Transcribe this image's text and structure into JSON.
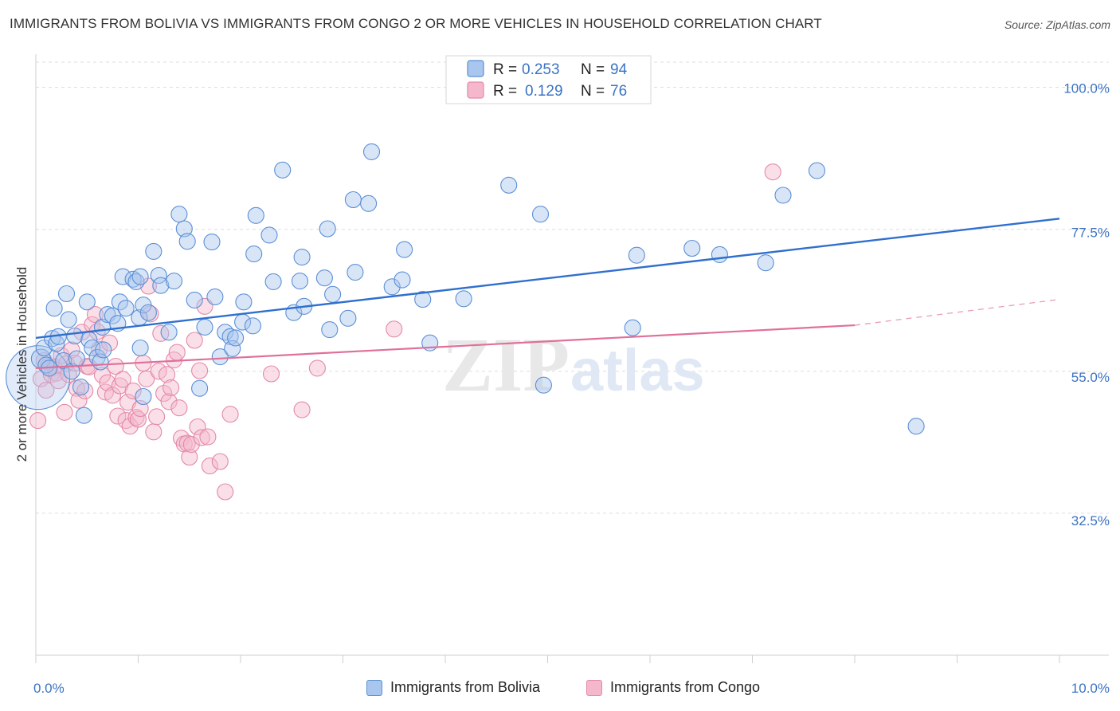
{
  "header": {
    "title": "IMMIGRANTS FROM BOLIVIA VS IMMIGRANTS FROM CONGO 2 OR MORE VEHICLES IN HOUSEHOLD CORRELATION CHART",
    "source": "Source: ZipAtlas.com"
  },
  "watermark": {
    "zip": "ZIP",
    "atlas": "atlas"
  },
  "colors": {
    "blue_fill": "#a9c6ee",
    "blue_stroke": "#5b8fd6",
    "blue_line": "#2f6fce",
    "pink_fill": "#f5b7cb",
    "pink_stroke": "#e38aa8",
    "pink_line": "#e0709a",
    "grid": "#dddddd",
    "axis_label": "#3b73c4"
  },
  "chart_data": {
    "type": "scatter",
    "title": "IMMIGRANTS FROM BOLIVIA VS IMMIGRANTS FROM CONGO 2 OR MORE VEHICLES IN HOUSEHOLD CORRELATION CHART",
    "xlabel": "",
    "ylabel": "2 or more Vehicles in Household",
    "xlim": [
      0,
      10
    ],
    "ylim": [
      10,
      104
    ],
    "x_tick_labels": [
      {
        "x": 0,
        "label": "0.0%"
      },
      {
        "x": 10,
        "label": "10.0%"
      }
    ],
    "y_tick_labels": [
      {
        "y": 100,
        "label": "100.0%"
      },
      {
        "y": 77.5,
        "label": "77.5%"
      },
      {
        "y": 55,
        "label": "55.0%"
      },
      {
        "y": 32.5,
        "label": "32.5%"
      }
    ],
    "legend": {
      "position": "top-center",
      "entries": [
        {
          "r_label": "R =",
          "r_value": "0.253",
          "n_label": "N =",
          "n_value": "94"
        },
        {
          "r_label": "R =",
          "r_value": "0.129",
          "n_label": "N =",
          "n_value": "76"
        }
      ]
    },
    "series": [
      {
        "name": "Immigrants from Bolivia",
        "trend": {
          "x0": 0,
          "y0": 60.3,
          "x1": 10,
          "y1": 79.2
        },
        "points": [
          [
            0.02,
            54,
            40
          ],
          [
            0.05,
            57,
            12
          ],
          [
            0.08,
            58.7,
            10
          ],
          [
            0.1,
            56,
            10
          ],
          [
            0.13,
            55.5,
            10
          ],
          [
            0.16,
            60.2,
            10
          ],
          [
            0.2,
            59.4,
            10
          ],
          [
            0.18,
            65,
            10
          ],
          [
            0.22,
            60.5,
            10
          ],
          [
            0.27,
            56.7,
            10
          ],
          [
            0.3,
            67.3,
            10
          ],
          [
            0.32,
            63.2,
            10
          ],
          [
            0.35,
            55,
            10
          ],
          [
            0.38,
            60.6,
            10
          ],
          [
            0.4,
            57,
            10
          ],
          [
            0.44,
            52.5,
            10
          ],
          [
            0.47,
            48,
            10
          ],
          [
            0.5,
            66,
            10
          ],
          [
            0.52,
            60,
            10
          ],
          [
            0.55,
            58.7,
            10
          ],
          [
            0.6,
            57.2,
            10
          ],
          [
            0.63,
            56.5,
            10
          ],
          [
            0.65,
            62,
            10
          ],
          [
            0.66,
            58.4,
            10
          ],
          [
            0.7,
            64,
            10
          ],
          [
            0.75,
            63.8,
            10
          ],
          [
            0.8,
            62.6,
            10
          ],
          [
            0.82,
            66,
            10
          ],
          [
            0.85,
            70,
            10
          ],
          [
            0.88,
            65,
            10
          ],
          [
            0.95,
            69.6,
            10
          ],
          [
            0.98,
            69.2,
            10
          ],
          [
            1.01,
            63.5,
            10
          ],
          [
            1.02,
            70,
            10
          ],
          [
            1.05,
            51,
            10
          ],
          [
            1.02,
            58.7,
            10
          ],
          [
            1.05,
            65.5,
            10
          ],
          [
            1.1,
            64.3,
            10
          ],
          [
            1.15,
            74,
            10
          ],
          [
            1.2,
            70.2,
            10
          ],
          [
            1.22,
            68.6,
            10
          ],
          [
            1.3,
            61.2,
            10
          ],
          [
            1.35,
            69.3,
            10
          ],
          [
            1.4,
            79.9,
            10
          ],
          [
            1.45,
            77.6,
            10
          ],
          [
            1.48,
            75.6,
            10
          ],
          [
            1.55,
            66.3,
            10
          ],
          [
            1.6,
            52.3,
            10
          ],
          [
            1.65,
            62,
            10
          ],
          [
            1.72,
            75.5,
            10
          ],
          [
            1.75,
            66.8,
            10
          ],
          [
            1.8,
            57.3,
            10
          ],
          [
            1.85,
            61.2,
            10
          ],
          [
            1.9,
            60.5,
            10
          ],
          [
            1.92,
            58.6,
            10
          ],
          [
            1.95,
            60.3,
            10
          ],
          [
            2.02,
            62.8,
            10
          ],
          [
            2.03,
            66,
            10
          ],
          [
            2.12,
            62.2,
            10
          ],
          [
            2.15,
            79.7,
            10
          ],
          [
            2.13,
            73.6,
            10
          ],
          [
            2.28,
            76.6,
            10
          ],
          [
            2.32,
            69.2,
            10
          ],
          [
            2.41,
            86.9,
            10
          ],
          [
            2.52,
            64.3,
            10
          ],
          [
            2.58,
            69.3,
            10
          ],
          [
            2.62,
            65.3,
            10
          ],
          [
            2.6,
            73.1,
            10
          ],
          [
            2.82,
            69.8,
            10
          ],
          [
            2.85,
            77.6,
            10
          ],
          [
            2.9,
            67.2,
            10
          ],
          [
            2.87,
            61.6,
            10
          ],
          [
            3.1,
            82.2,
            10
          ],
          [
            3.25,
            81.6,
            10
          ],
          [
            3.28,
            89.8,
            10
          ],
          [
            3.48,
            68.4,
            10
          ],
          [
            3.6,
            74.3,
            10
          ],
          [
            3.05,
            63.4,
            10
          ],
          [
            3.12,
            70.7,
            10
          ],
          [
            3.58,
            69.5,
            10
          ],
          [
            3.78,
            66.4,
            10
          ],
          [
            3.85,
            59.5,
            10
          ],
          [
            4.18,
            66.5,
            10
          ],
          [
            4.62,
            84.5,
            10
          ],
          [
            4.93,
            79.9,
            10
          ],
          [
            4.96,
            52.8,
            10
          ],
          [
            5.87,
            73.4,
            10
          ],
          [
            5.83,
            61.9,
            10
          ],
          [
            6.41,
            74.5,
            10
          ],
          [
            6.68,
            73.5,
            10
          ],
          [
            7.13,
            72.2,
            10
          ],
          [
            7.3,
            82.9,
            10
          ],
          [
            7.63,
            86.8,
            10
          ],
          [
            8.6,
            46.3,
            10
          ]
        ]
      },
      {
        "name": "Immigrants from Congo",
        "trend": {
          "x0": 0,
          "y0": 55.5,
          "x1": 8.0,
          "y1": 62.3,
          "dash_x1": 10,
          "dash_y1": 66.4
        },
        "points": [
          [
            0.02,
            47.2,
            10
          ],
          [
            0.05,
            53.8,
            10
          ],
          [
            0.08,
            56.7,
            10
          ],
          [
            0.1,
            52,
            10
          ],
          [
            0.12,
            55.8,
            10
          ],
          [
            0.15,
            54.5,
            10
          ],
          [
            0.18,
            55.7,
            10
          ],
          [
            0.2,
            54.7,
            10
          ],
          [
            0.22,
            53.5,
            10
          ],
          [
            0.25,
            57.5,
            10
          ],
          [
            0.28,
            48.5,
            10
          ],
          [
            0.3,
            56.2,
            10
          ],
          [
            0.32,
            54.5,
            10
          ],
          [
            0.35,
            58.4,
            10
          ],
          [
            0.38,
            56.3,
            10
          ],
          [
            0.4,
            52.3,
            10
          ],
          [
            0.42,
            50.4,
            10
          ],
          [
            0.45,
            61.2,
            10
          ],
          [
            0.48,
            51.9,
            10
          ],
          [
            0.5,
            55.8,
            10
          ],
          [
            0.52,
            55.7,
            10
          ],
          [
            0.55,
            62.4,
            10
          ],
          [
            0.58,
            64,
            10
          ],
          [
            0.6,
            61.3,
            10
          ],
          [
            0.62,
            58.5,
            10
          ],
          [
            0.65,
            54.4,
            10
          ],
          [
            0.68,
            51.7,
            10
          ],
          [
            0.7,
            53.2,
            10
          ],
          [
            0.72,
            59.5,
            10
          ],
          [
            0.75,
            51.2,
            10
          ],
          [
            0.78,
            55.8,
            10
          ],
          [
            0.8,
            47.9,
            10
          ],
          [
            0.82,
            52.7,
            10
          ],
          [
            0.85,
            53.7,
            10
          ],
          [
            0.88,
            47.2,
            10
          ],
          [
            0.9,
            50.1,
            10
          ],
          [
            0.92,
            46.3,
            10
          ],
          [
            0.95,
            51.9,
            10
          ],
          [
            0.98,
            47.7,
            10
          ],
          [
            1.0,
            47.4,
            10
          ],
          [
            1.02,
            49.1,
            10
          ],
          [
            1.05,
            56.3,
            10
          ],
          [
            1.08,
            53.8,
            10
          ],
          [
            1.1,
            68.5,
            10
          ],
          [
            1.12,
            64.1,
            10
          ],
          [
            1.15,
            45.4,
            10
          ],
          [
            1.18,
            47.8,
            10
          ],
          [
            1.2,
            55,
            10
          ],
          [
            1.22,
            61,
            10
          ],
          [
            1.25,
            51.5,
            10
          ],
          [
            1.28,
            54.5,
            10
          ],
          [
            1.3,
            50.2,
            10
          ],
          [
            1.32,
            52.4,
            10
          ],
          [
            1.35,
            56.8,
            10
          ],
          [
            1.38,
            58,
            10
          ],
          [
            1.4,
            49.2,
            10
          ],
          [
            1.42,
            44.4,
            10
          ],
          [
            1.45,
            43.5,
            10
          ],
          [
            1.48,
            43.6,
            10
          ],
          [
            1.5,
            41.4,
            10
          ],
          [
            1.52,
            43.4,
            10
          ],
          [
            1.55,
            59.9,
            10
          ],
          [
            1.58,
            46.2,
            10
          ],
          [
            1.6,
            55.1,
            10
          ],
          [
            1.62,
            44.5,
            10
          ],
          [
            1.65,
            65.3,
            10
          ],
          [
            1.68,
            44.6,
            10
          ],
          [
            1.7,
            40,
            10
          ],
          [
            1.8,
            40.7,
            10
          ],
          [
            1.85,
            35.9,
            10
          ],
          [
            1.9,
            48.2,
            10
          ],
          [
            2.3,
            54.6,
            10
          ],
          [
            2.6,
            48.9,
            10
          ],
          [
            2.75,
            55.5,
            10
          ],
          [
            3.5,
            61.7,
            10
          ],
          [
            7.2,
            86.6,
            10
          ]
        ]
      }
    ]
  },
  "bottom_legend": {
    "items": [
      {
        "label": "Immigrants from Bolivia"
      },
      {
        "label": "Immigrants from Congo"
      }
    ]
  }
}
